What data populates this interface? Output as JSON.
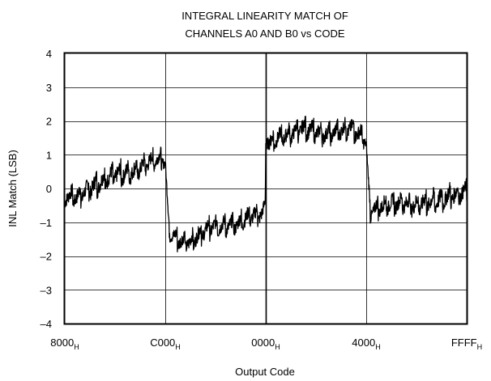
{
  "chart_data": {
    "type": "line",
    "title_lines": [
      "INTEGRAL LINEARITY MATCH OF",
      "CHANNELS A0 AND B0 vs CODE"
    ],
    "xlabel": "Output Code",
    "ylabel": "INL Match (LSB)",
    "ylim": [
      -4,
      4
    ],
    "y_ticks": [
      -4,
      -3,
      -2,
      -1,
      0,
      1,
      2,
      3,
      4
    ],
    "y_tick_labels": [
      "–4",
      "–3",
      "–2",
      "–1",
      "0",
      "1",
      "2",
      "3",
      "4"
    ],
    "x_ticks": [
      {
        "main": "8000",
        "sub": "H"
      },
      {
        "main": "C000",
        "sub": "H"
      },
      {
        "main": "0000",
        "sub": "H"
      },
      {
        "main": "4000",
        "sub": "H"
      },
      {
        "main": "FFFF",
        "sub": "H"
      }
    ],
    "grid": true,
    "series": [
      {
        "x": [
          0,
          0.03,
          0.06,
          0.09,
          0.12,
          0.15,
          0.18,
          0.21,
          0.24,
          0.25,
          0.26,
          0.28,
          0.31,
          0.34,
          0.37,
          0.4,
          0.43,
          0.46,
          0.49,
          0.499,
          0.5,
          0.51,
          0.53,
          0.56,
          0.59,
          0.62,
          0.65,
          0.68,
          0.71,
          0.74,
          0.749,
          0.75,
          0.76,
          0.78,
          0.81,
          0.84,
          0.87,
          0.9,
          0.93,
          0.96,
          1.0
        ],
        "y": [
          -0.2,
          -0.25,
          0.0,
          0.2,
          0.4,
          0.45,
          0.55,
          0.8,
          0.9,
          0.75,
          -1.3,
          -1.5,
          -1.6,
          -1.3,
          -1.1,
          -1.1,
          -1.05,
          -0.8,
          -0.75,
          -0.5,
          1.5,
          1.35,
          1.5,
          1.6,
          1.8,
          1.7,
          1.6,
          1.7,
          1.8,
          1.55,
          1.35,
          1.3,
          -0.7,
          -0.55,
          -0.45,
          -0.4,
          -0.5,
          -0.4,
          -0.35,
          -0.2,
          -0.1
        ],
        "band": [
          0.8,
          0.8,
          0.9,
          0.9,
          0.9,
          0.9,
          0.9,
          0.8,
          0.7,
          0.6,
          0.6,
          0.8,
          0.8,
          0.8,
          0.8,
          0.8,
          0.8,
          0.8,
          0.8,
          0.6,
          0.6,
          0.8,
          0.8,
          0.8,
          0.8,
          0.8,
          0.8,
          0.8,
          0.8,
          0.8,
          0.6,
          0.6,
          0.7,
          0.8,
          0.8,
          0.8,
          0.9,
          0.9,
          0.9,
          0.9,
          0.8
        ]
      }
    ]
  }
}
